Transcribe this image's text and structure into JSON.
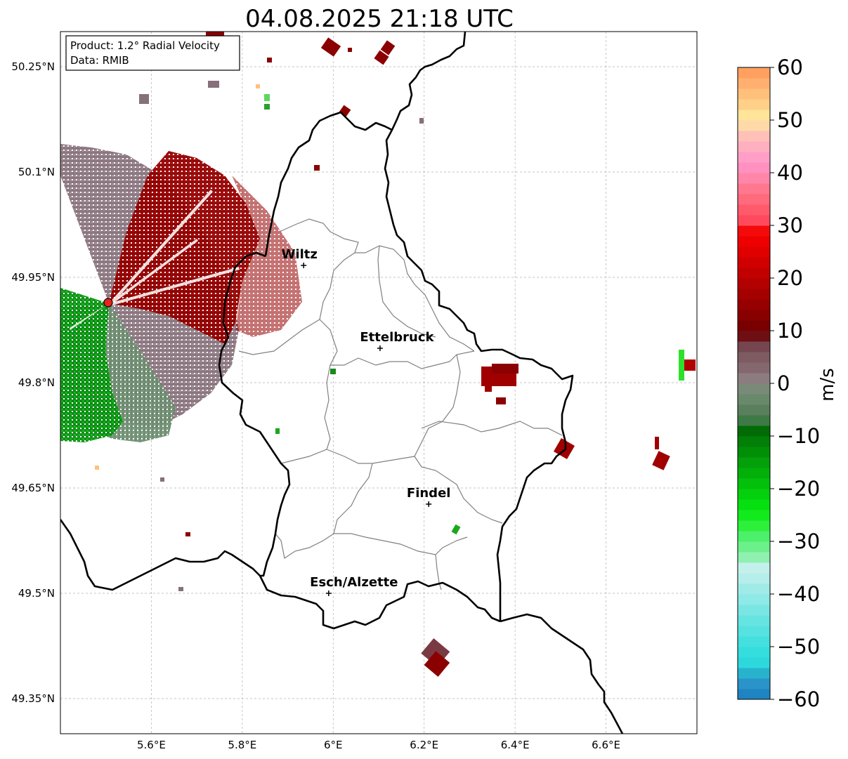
{
  "title": "04.08.2025 21:18 UTC",
  "info_box": {
    "product": "Product: 1.2° Radial Velocity",
    "data": "Data: RMIB"
  },
  "axes": {
    "x_ticks": [
      {
        "value": 5.6,
        "label": "5.6°E"
      },
      {
        "value": 5.8,
        "label": "5.8°E"
      },
      {
        "value": 6.0,
        "label": "6°E"
      },
      {
        "value": 6.2,
        "label": "6.2°E"
      },
      {
        "value": 6.4,
        "label": "6.4°E"
      },
      {
        "value": 6.6,
        "label": "6.6°E"
      }
    ],
    "y_ticks": [
      {
        "value": 50.25,
        "label": "50.25°N"
      },
      {
        "value": 50.1,
        "label": "50.1°N"
      },
      {
        "value": 49.95,
        "label": "49.95°N"
      },
      {
        "value": 49.8,
        "label": "49.8°N"
      },
      {
        "value": 49.65,
        "label": "49.65°N"
      },
      {
        "value": 49.5,
        "label": "49.5°N"
      },
      {
        "value": 49.35,
        "label": "49.35°N"
      }
    ],
    "lon_range": [
      5.4,
      6.8
    ],
    "lat_range": [
      49.3,
      50.3
    ],
    "grid": true
  },
  "cities": [
    {
      "name": "Wiltz",
      "lon": 5.935,
      "lat": 49.967
    },
    {
      "name": "Ettelbruck",
      "lon": 6.103,
      "lat": 49.849
    },
    {
      "name": "Findel",
      "lon": 6.21,
      "lat": 49.627
    },
    {
      "name": "Esch/Alzette",
      "lon": 5.99,
      "lat": 49.5
    }
  ],
  "radar_site": {
    "lon": 5.505,
    "lat": 49.914,
    "color": "#e8231c"
  },
  "colorbar": {
    "label": "m/s",
    "min": -60,
    "max": 60,
    "ticks": [
      {
        "value": 60,
        "label": "60"
      },
      {
        "value": 50,
        "label": "50"
      },
      {
        "value": 40,
        "label": "40"
      },
      {
        "value": 30,
        "label": "30"
      },
      {
        "value": 20,
        "label": "20"
      },
      {
        "value": 10,
        "label": "10"
      },
      {
        "value": 0,
        "label": "0"
      },
      {
        "value": -10,
        "label": "−10"
      },
      {
        "value": -20,
        "label": "−20"
      },
      {
        "value": -30,
        "label": "−30"
      },
      {
        "value": -40,
        "label": "−40"
      },
      {
        "value": -50,
        "label": "−50"
      },
      {
        "value": -60,
        "label": "−60"
      }
    ],
    "stops": [
      {
        "from": -60,
        "to": -58,
        "color": "#1f84c2"
      },
      {
        "from": -58,
        "to": -56,
        "color": "#2a93c9"
      },
      {
        "from": -56,
        "to": -54,
        "color": "#27b3cc"
      },
      {
        "from": -54,
        "to": -52,
        "color": "#2dd8dc"
      },
      {
        "from": -52,
        "to": -50,
        "color": "#35dede"
      },
      {
        "from": -50,
        "to": -48,
        "color": "#44e0df"
      },
      {
        "from": -48,
        "to": -46,
        "color": "#55e2e0"
      },
      {
        "from": -46,
        "to": -44,
        "color": "#66e4e2"
      },
      {
        "from": -44,
        "to": -42,
        "color": "#7ae6e4"
      },
      {
        "from": -42,
        "to": -40,
        "color": "#8ee9e7"
      },
      {
        "from": -40,
        "to": -38,
        "color": "#a0ebe8"
      },
      {
        "from": -38,
        "to": -36,
        "color": "#b5eeea"
      },
      {
        "from": -36,
        "to": -34,
        "color": "#c4f0ec"
      },
      {
        "from": -34,
        "to": -32,
        "color": "#8ff0b0"
      },
      {
        "from": -32,
        "to": -30,
        "color": "#6cf08a"
      },
      {
        "from": -30,
        "to": -28,
        "color": "#4cf06a"
      },
      {
        "from": -28,
        "to": -26,
        "color": "#2cf03a"
      },
      {
        "from": -26,
        "to": -24,
        "color": "#12ea1e"
      },
      {
        "from": -24,
        "to": -22,
        "color": "#06e010"
      },
      {
        "from": -22,
        "to": -20,
        "color": "#04d00d"
      },
      {
        "from": -20,
        "to": -18,
        "color": "#03c00b"
      },
      {
        "from": -18,
        "to": -16,
        "color": "#03b00a"
      },
      {
        "from": -16,
        "to": -14,
        "color": "#03a009"
      },
      {
        "from": -14,
        "to": -12,
        "color": "#028f08"
      },
      {
        "from": -12,
        "to": -10,
        "color": "#027f06"
      },
      {
        "from": -10,
        "to": -8,
        "color": "#016c05"
      },
      {
        "from": -8,
        "to": -6,
        "color": "#3e7a46"
      },
      {
        "from": -6,
        "to": -4,
        "color": "#5a7f5c"
      },
      {
        "from": -4,
        "to": -2,
        "color": "#688a6a"
      },
      {
        "from": -2,
        "to": 0,
        "color": "#7a8a78"
      },
      {
        "from": 0,
        "to": 2,
        "color": "#8c7c80"
      },
      {
        "from": 2,
        "to": 4,
        "color": "#85686f"
      },
      {
        "from": 4,
        "to": 6,
        "color": "#7e5a61"
      },
      {
        "from": 6,
        "to": 8,
        "color": "#754650"
      },
      {
        "from": 8,
        "to": 10,
        "color": "#6e0f14"
      },
      {
        "from": 10,
        "to": 12,
        "color": "#7a0000"
      },
      {
        "from": 12,
        "to": 14,
        "color": "#880000"
      },
      {
        "from": 14,
        "to": 16,
        "color": "#960000"
      },
      {
        "from": 16,
        "to": 18,
        "color": "#a40000"
      },
      {
        "from": 18,
        "to": 20,
        "color": "#b30000"
      },
      {
        "from": 20,
        "to": 22,
        "color": "#c20000"
      },
      {
        "from": 22,
        "to": 24,
        "color": "#d10000"
      },
      {
        "from": 24,
        "to": 26,
        "color": "#e00000"
      },
      {
        "from": 26,
        "to": 28,
        "color": "#ee0000"
      },
      {
        "from": 28,
        "to": 30,
        "color": "#f40a0a"
      },
      {
        "from": 30,
        "to": 32,
        "color": "#ff4a5e"
      },
      {
        "from": 32,
        "to": 34,
        "color": "#ff5a6c"
      },
      {
        "from": 34,
        "to": 36,
        "color": "#ff6a7c"
      },
      {
        "from": 36,
        "to": 38,
        "color": "#ff7890"
      },
      {
        "from": 38,
        "to": 40,
        "color": "#ff86a8"
      },
      {
        "from": 40,
        "to": 42,
        "color": "#ff90c0"
      },
      {
        "from": 42,
        "to": 44,
        "color": "#ff9fc8"
      },
      {
        "from": 44,
        "to": 46,
        "color": "#ffb0c0"
      },
      {
        "from": 46,
        "to": 48,
        "color": "#ffc0b8"
      },
      {
        "from": 48,
        "to": 50,
        "color": "#ffdaa8"
      },
      {
        "from": 50,
        "to": 52,
        "color": "#ffe49a"
      },
      {
        "from": 52,
        "to": 54,
        "color": "#ffd088"
      },
      {
        "from": 54,
        "to": 56,
        "color": "#ffc07c"
      },
      {
        "from": 56,
        "to": 58,
        "color": "#ffb070"
      },
      {
        "from": 58,
        "to": 60,
        "color": "#ffa060"
      }
    ]
  },
  "colors": {
    "border": "#000000",
    "admin": "#808080",
    "grid": "#b0b0b0",
    "inbound_green": "#0a8f12",
    "receding_red": "#8b0000",
    "near_zero_mauve": "#86707a",
    "near_zero_sage": "#6b8a6e"
  }
}
